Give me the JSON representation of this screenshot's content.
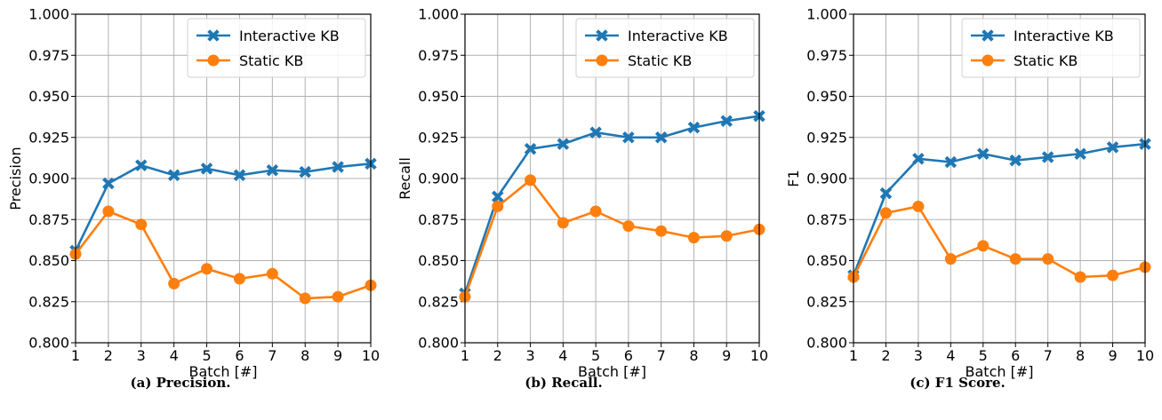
{
  "chart_data": [
    {
      "type": "line",
      "caption": "(a) Precision.",
      "title": "",
      "xlabel": "Batch [#]",
      "ylabel": "Precision",
      "xlim": [
        1,
        10
      ],
      "ylim": [
        0.8,
        1.0
      ],
      "x": [
        1,
        2,
        3,
        4,
        5,
        6,
        7,
        8,
        9,
        10
      ],
      "yticks": [
        "0.800",
        "0.825",
        "0.850",
        "0.875",
        "0.900",
        "0.925",
        "0.950",
        "0.975",
        "1.000"
      ],
      "grid": true,
      "legend_position": "top-right",
      "series": [
        {
          "name": "Interactive KB",
          "color": "#1f77b4",
          "marker": "x-filled",
          "values": [
            0.856,
            0.897,
            0.908,
            0.902,
            0.906,
            0.902,
            0.905,
            0.904,
            0.907,
            0.909
          ]
        },
        {
          "name": "Static KB",
          "color": "#ff7f0e",
          "marker": "circle",
          "values": [
            0.854,
            0.88,
            0.872,
            0.836,
            0.845,
            0.839,
            0.842,
            0.827,
            0.828,
            0.835
          ]
        }
      ]
    },
    {
      "type": "line",
      "caption": "(b) Recall.",
      "title": "",
      "xlabel": "Batch [#]",
      "ylabel": "Recall",
      "xlim": [
        1,
        10
      ],
      "ylim": [
        0.8,
        1.0
      ],
      "x": [
        1,
        2,
        3,
        4,
        5,
        6,
        7,
        8,
        9,
        10
      ],
      "yticks": [
        "0.800",
        "0.825",
        "0.850",
        "0.875",
        "0.900",
        "0.925",
        "0.950",
        "0.975",
        "1.000"
      ],
      "grid": true,
      "legend_position": "top-right",
      "series": [
        {
          "name": "Interactive KB",
          "color": "#1f77b4",
          "marker": "x-filled",
          "values": [
            0.83,
            0.889,
            0.918,
            0.921,
            0.928,
            0.925,
            0.925,
            0.931,
            0.935,
            0.938
          ]
        },
        {
          "name": "Static KB",
          "color": "#ff7f0e",
          "marker": "circle",
          "values": [
            0.828,
            0.883,
            0.899,
            0.873,
            0.88,
            0.871,
            0.868,
            0.864,
            0.865,
            0.869
          ]
        }
      ]
    },
    {
      "type": "line",
      "caption": "(c) F1 Score.",
      "title": "",
      "xlabel": "Batch [#]",
      "ylabel": "F1",
      "xlim": [
        1,
        10
      ],
      "ylim": [
        0.8,
        1.0
      ],
      "x": [
        1,
        2,
        3,
        4,
        5,
        6,
        7,
        8,
        9,
        10
      ],
      "yticks": [
        "0.800",
        "0.825",
        "0.850",
        "0.875",
        "0.900",
        "0.925",
        "0.950",
        "0.975",
        "1.000"
      ],
      "grid": true,
      "legend_position": "top-right",
      "series": [
        {
          "name": "Interactive KB",
          "color": "#1f77b4",
          "marker": "x-filled",
          "values": [
            0.841,
            0.891,
            0.912,
            0.91,
            0.915,
            0.911,
            0.913,
            0.915,
            0.919,
            0.921
          ]
        },
        {
          "name": "Static KB",
          "color": "#ff7f0e",
          "marker": "circle",
          "values": [
            0.84,
            0.879,
            0.883,
            0.851,
            0.859,
            0.851,
            0.851,
            0.84,
            0.841,
            0.846
          ]
        }
      ]
    }
  ]
}
